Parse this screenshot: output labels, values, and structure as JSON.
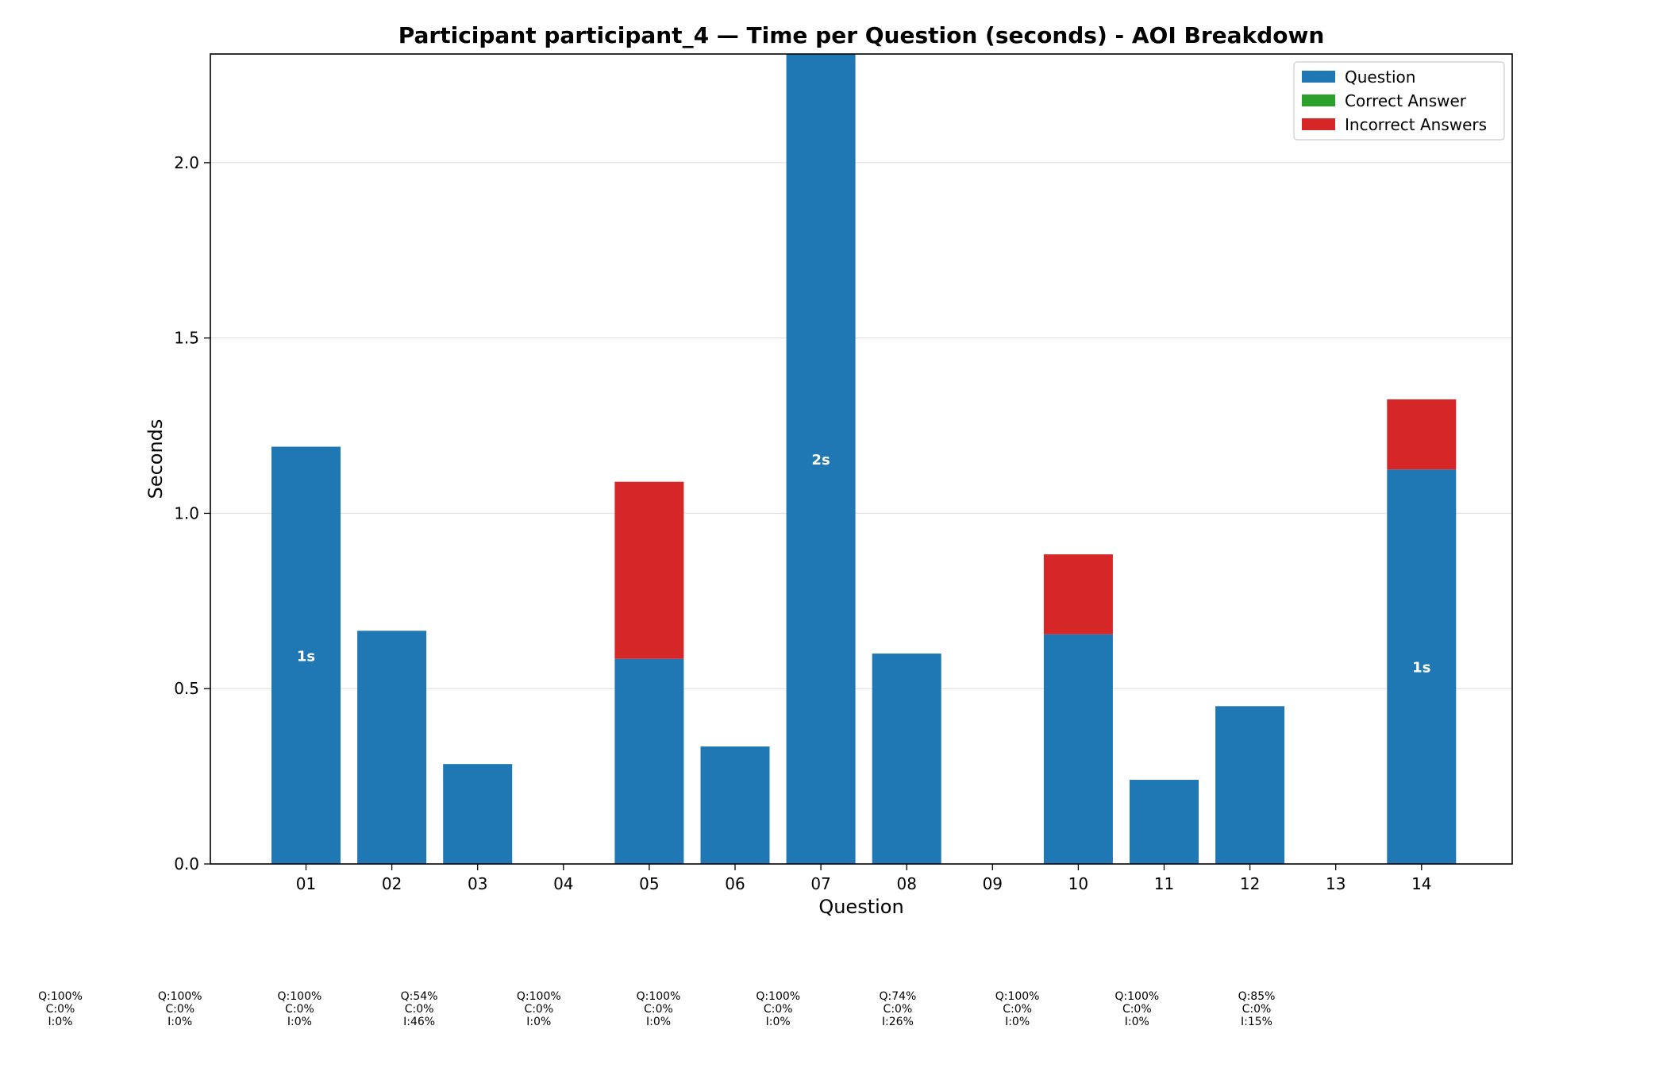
{
  "chart_data": {
    "type": "bar",
    "stacked": true,
    "title": "Participant participant_4 — Time per Question (seconds) - AOI Breakdown",
    "xlabel": "Question",
    "ylabel": "Seconds",
    "ylim": [
      0,
      2.31
    ],
    "yticks": [
      "0.0",
      "0.5",
      "1.0",
      "1.5",
      "2.0"
    ],
    "grid": "horizontal",
    "legend_position": "top-right",
    "categories": [
      "01",
      "02",
      "03",
      "04",
      "05",
      "06",
      "07",
      "08",
      "09",
      "10",
      "11",
      "12",
      "13",
      "14"
    ],
    "series": [
      {
        "name": "Question",
        "color": "#1f77b4",
        "values": [
          1.19,
          0.665,
          0.285,
          0,
          0.585,
          0.335,
          2.31,
          0.6,
          0,
          0.655,
          0.24,
          0.45,
          0,
          1.125
        ]
      },
      {
        "name": "Correct Answer",
        "color": "#2ca02c",
        "values": [
          0,
          0,
          0,
          0,
          0,
          0,
          0,
          0,
          0,
          0,
          0,
          0,
          0,
          0
        ]
      },
      {
        "name": "Incorrect Answers",
        "color": "#d62728",
        "values": [
          0,
          0,
          0,
          0,
          0.505,
          0,
          0,
          0,
          0,
          0.228,
          0,
          0,
          0,
          0.2
        ]
      }
    ],
    "bar_labels": [
      {
        "category": "01",
        "text": "1s"
      },
      {
        "category": "07",
        "text": "2s"
      },
      {
        "category": "14",
        "text": "1s"
      }
    ],
    "breakdown_annotations": [
      [
        "Q:100%",
        "C:0%",
        "I:0%"
      ],
      [
        "Q:100%",
        "C:0%",
        "I:0%"
      ],
      [
        "Q:100%",
        "C:0%",
        "I:0%"
      ],
      [
        "Q:54%",
        "C:0%",
        "I:46%"
      ],
      [
        "Q:100%",
        "C:0%",
        "I:0%"
      ],
      [
        "Q:100%",
        "C:0%",
        "I:0%"
      ],
      [
        "Q:100%",
        "C:0%",
        "I:0%"
      ],
      [
        "Q:74%",
        "C:0%",
        "I:26%"
      ],
      [
        "Q:100%",
        "C:0%",
        "I:0%"
      ],
      [
        "Q:100%",
        "C:0%",
        "I:0%"
      ],
      [
        "Q:85%",
        "C:0%",
        "I:15%"
      ]
    ]
  }
}
